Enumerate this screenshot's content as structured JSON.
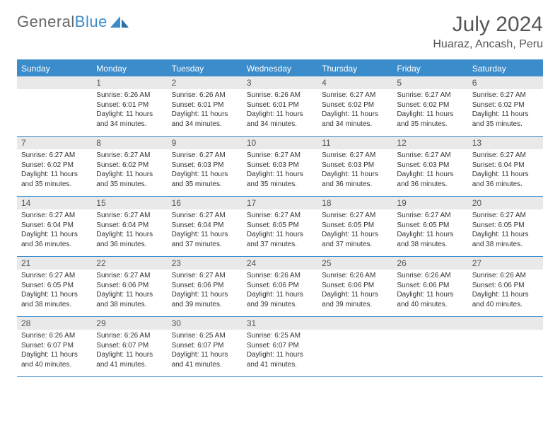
{
  "brand": {
    "word1": "General",
    "word2": "Blue"
  },
  "title": "July 2024",
  "location": "Huaraz, Ancash, Peru",
  "colors": {
    "accent": "#3b8ccb",
    "daynum_bg": "#e9e9e9",
    "text": "#333333",
    "title_text": "#555555",
    "bg": "#ffffff"
  },
  "weekdays": [
    "Sunday",
    "Monday",
    "Tuesday",
    "Wednesday",
    "Thursday",
    "Friday",
    "Saturday"
  ],
  "weeks": [
    [
      {
        "n": "",
        "sr": "",
        "ss": "",
        "dl": ""
      },
      {
        "n": "1",
        "sr": "Sunrise: 6:26 AM",
        "ss": "Sunset: 6:01 PM",
        "dl": "Daylight: 11 hours and 34 minutes."
      },
      {
        "n": "2",
        "sr": "Sunrise: 6:26 AM",
        "ss": "Sunset: 6:01 PM",
        "dl": "Daylight: 11 hours and 34 minutes."
      },
      {
        "n": "3",
        "sr": "Sunrise: 6:26 AM",
        "ss": "Sunset: 6:01 PM",
        "dl": "Daylight: 11 hours and 34 minutes."
      },
      {
        "n": "4",
        "sr": "Sunrise: 6:27 AM",
        "ss": "Sunset: 6:02 PM",
        "dl": "Daylight: 11 hours and 34 minutes."
      },
      {
        "n": "5",
        "sr": "Sunrise: 6:27 AM",
        "ss": "Sunset: 6:02 PM",
        "dl": "Daylight: 11 hours and 35 minutes."
      },
      {
        "n": "6",
        "sr": "Sunrise: 6:27 AM",
        "ss": "Sunset: 6:02 PM",
        "dl": "Daylight: 11 hours and 35 minutes."
      }
    ],
    [
      {
        "n": "7",
        "sr": "Sunrise: 6:27 AM",
        "ss": "Sunset: 6:02 PM",
        "dl": "Daylight: 11 hours and 35 minutes."
      },
      {
        "n": "8",
        "sr": "Sunrise: 6:27 AM",
        "ss": "Sunset: 6:02 PM",
        "dl": "Daylight: 11 hours and 35 minutes."
      },
      {
        "n": "9",
        "sr": "Sunrise: 6:27 AM",
        "ss": "Sunset: 6:03 PM",
        "dl": "Daylight: 11 hours and 35 minutes."
      },
      {
        "n": "10",
        "sr": "Sunrise: 6:27 AM",
        "ss": "Sunset: 6:03 PM",
        "dl": "Daylight: 11 hours and 35 minutes."
      },
      {
        "n": "11",
        "sr": "Sunrise: 6:27 AM",
        "ss": "Sunset: 6:03 PM",
        "dl": "Daylight: 11 hours and 36 minutes."
      },
      {
        "n": "12",
        "sr": "Sunrise: 6:27 AM",
        "ss": "Sunset: 6:03 PM",
        "dl": "Daylight: 11 hours and 36 minutes."
      },
      {
        "n": "13",
        "sr": "Sunrise: 6:27 AM",
        "ss": "Sunset: 6:04 PM",
        "dl": "Daylight: 11 hours and 36 minutes."
      }
    ],
    [
      {
        "n": "14",
        "sr": "Sunrise: 6:27 AM",
        "ss": "Sunset: 6:04 PM",
        "dl": "Daylight: 11 hours and 36 minutes."
      },
      {
        "n": "15",
        "sr": "Sunrise: 6:27 AM",
        "ss": "Sunset: 6:04 PM",
        "dl": "Daylight: 11 hours and 36 minutes."
      },
      {
        "n": "16",
        "sr": "Sunrise: 6:27 AM",
        "ss": "Sunset: 6:04 PM",
        "dl": "Daylight: 11 hours and 37 minutes."
      },
      {
        "n": "17",
        "sr": "Sunrise: 6:27 AM",
        "ss": "Sunset: 6:05 PM",
        "dl": "Daylight: 11 hours and 37 minutes."
      },
      {
        "n": "18",
        "sr": "Sunrise: 6:27 AM",
        "ss": "Sunset: 6:05 PM",
        "dl": "Daylight: 11 hours and 37 minutes."
      },
      {
        "n": "19",
        "sr": "Sunrise: 6:27 AM",
        "ss": "Sunset: 6:05 PM",
        "dl": "Daylight: 11 hours and 38 minutes."
      },
      {
        "n": "20",
        "sr": "Sunrise: 6:27 AM",
        "ss": "Sunset: 6:05 PM",
        "dl": "Daylight: 11 hours and 38 minutes."
      }
    ],
    [
      {
        "n": "21",
        "sr": "Sunrise: 6:27 AM",
        "ss": "Sunset: 6:05 PM",
        "dl": "Daylight: 11 hours and 38 minutes."
      },
      {
        "n": "22",
        "sr": "Sunrise: 6:27 AM",
        "ss": "Sunset: 6:06 PM",
        "dl": "Daylight: 11 hours and 38 minutes."
      },
      {
        "n": "23",
        "sr": "Sunrise: 6:27 AM",
        "ss": "Sunset: 6:06 PM",
        "dl": "Daylight: 11 hours and 39 minutes."
      },
      {
        "n": "24",
        "sr": "Sunrise: 6:26 AM",
        "ss": "Sunset: 6:06 PM",
        "dl": "Daylight: 11 hours and 39 minutes."
      },
      {
        "n": "25",
        "sr": "Sunrise: 6:26 AM",
        "ss": "Sunset: 6:06 PM",
        "dl": "Daylight: 11 hours and 39 minutes."
      },
      {
        "n": "26",
        "sr": "Sunrise: 6:26 AM",
        "ss": "Sunset: 6:06 PM",
        "dl": "Daylight: 11 hours and 40 minutes."
      },
      {
        "n": "27",
        "sr": "Sunrise: 6:26 AM",
        "ss": "Sunset: 6:06 PM",
        "dl": "Daylight: 11 hours and 40 minutes."
      }
    ],
    [
      {
        "n": "28",
        "sr": "Sunrise: 6:26 AM",
        "ss": "Sunset: 6:07 PM",
        "dl": "Daylight: 11 hours and 40 minutes."
      },
      {
        "n": "29",
        "sr": "Sunrise: 6:26 AM",
        "ss": "Sunset: 6:07 PM",
        "dl": "Daylight: 11 hours and 41 minutes."
      },
      {
        "n": "30",
        "sr": "Sunrise: 6:25 AM",
        "ss": "Sunset: 6:07 PM",
        "dl": "Daylight: 11 hours and 41 minutes."
      },
      {
        "n": "31",
        "sr": "Sunrise: 6:25 AM",
        "ss": "Sunset: 6:07 PM",
        "dl": "Daylight: 11 hours and 41 minutes."
      },
      {
        "n": "",
        "sr": "",
        "ss": "",
        "dl": ""
      },
      {
        "n": "",
        "sr": "",
        "ss": "",
        "dl": ""
      },
      {
        "n": "",
        "sr": "",
        "ss": "",
        "dl": ""
      }
    ]
  ]
}
